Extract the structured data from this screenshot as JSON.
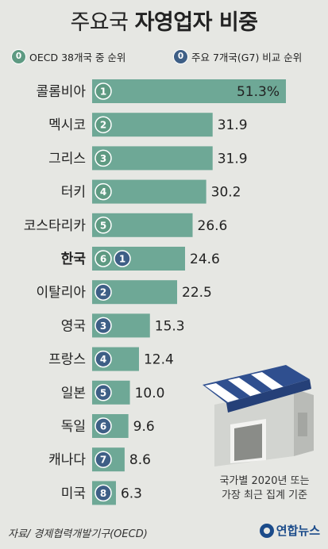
{
  "title_light": "주요국",
  "title_bold": "자영업자 비중",
  "legend": {
    "oecd_badge": "0",
    "oecd_label": "OECD 38개국 중 순위",
    "g7_badge": "0",
    "g7_label": "주요 7개국(G7) 비교 순위"
  },
  "chart_data": {
    "type": "bar",
    "orientation": "horizontal",
    "unit": "%",
    "categories": [
      "콜롬비아",
      "멕시코",
      "그리스",
      "터키",
      "코스타리카",
      "한국",
      "이탈리아",
      "영국",
      "프랑스",
      "일본",
      "독일",
      "캐나다",
      "미국"
    ],
    "values": [
      51.3,
      31.9,
      31.9,
      30.2,
      26.6,
      24.6,
      22.5,
      15.3,
      12.4,
      10.0,
      9.6,
      8.6,
      6.3
    ],
    "value_labels": [
      "51.3%",
      "31.9",
      "31.9",
      "30.2",
      "26.6",
      "24.6",
      "22.5",
      "15.3",
      "12.4",
      "10.0",
      "9.6",
      "8.6",
      "6.3"
    ],
    "oecd_rank": [
      "1",
      "2",
      "3",
      "4",
      "5",
      "6",
      "",
      "",
      "",
      "",
      "",
      "",
      ""
    ],
    "g7_rank": [
      "",
      "",
      "",
      "",
      "",
      "1",
      "2",
      "3",
      "4",
      "5",
      "6",
      "7",
      "8"
    ],
    "bar_color": "#6ea896",
    "oecd_badge_color": "#5e9a82",
    "g7_badge_color": "#3e5f86"
  },
  "note_line1": "국가별 2020년 또는",
  "note_line2": "가장 최근 집계 기준",
  "source": "자료/ 경제협력개발기구(OECD)",
  "logo": "연합뉴스",
  "store_icon": "storefront-icon"
}
